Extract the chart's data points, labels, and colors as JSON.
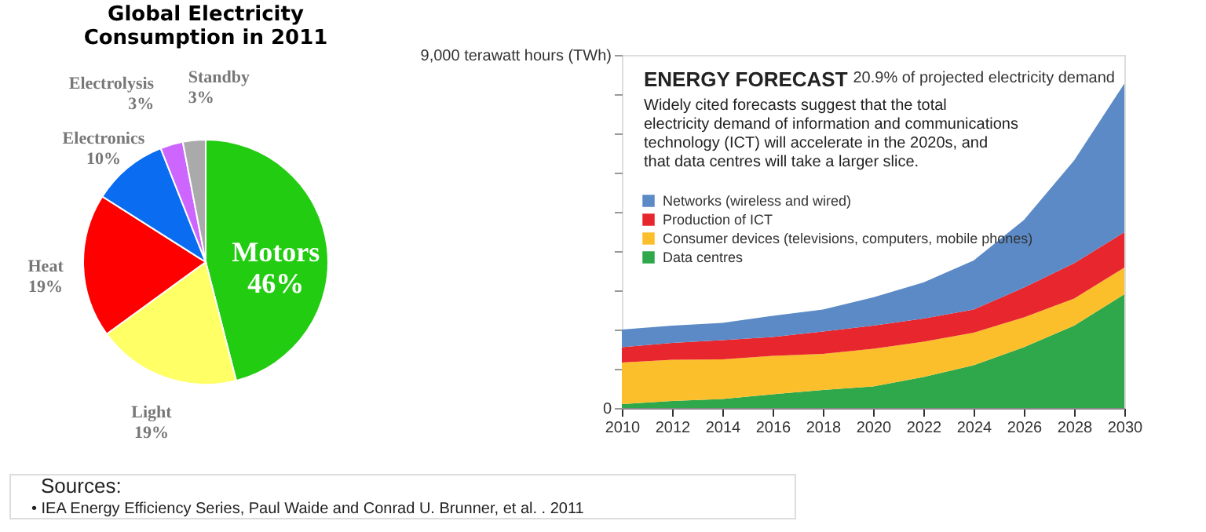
{
  "chart_data": [
    {
      "type": "pie",
      "title": "Global Electricity Consumption in 2011",
      "categories": [
        "Motors",
        "Light",
        "Heat",
        "Electronics",
        "Electrolysis",
        "Standby"
      ],
      "values": [
        46,
        19,
        19,
        10,
        3,
        3
      ],
      "value_labels": [
        "46%",
        "19%",
        "19%",
        "10%",
        "3%",
        "3%"
      ],
      "colors": [
        "#22cc11",
        "#ffff66",
        "#ff0000",
        "#0a6cf0",
        "#cc66ff",
        "#aaaaaa"
      ],
      "annotations": [
        "Sources:",
        "•   IEA Energy Efficiency Series, Paul Waide and Conrad U. Brunner, et al. . 2011"
      ]
    },
    {
      "type": "area",
      "stacked": true,
      "title": "ENERGY FORECAST",
      "subtitle": "Widely cited forecasts suggest that the total electricity demand of information and communications technology (ICT) will accelerate in the 2020s, and that data centres will take a larger slice.",
      "x": [
        2010,
        2012,
        2014,
        2016,
        2018,
        2020,
        2022,
        2024,
        2026,
        2028,
        2030
      ],
      "series": [
        {
          "name": "Data centres",
          "color": "#2ea84a",
          "values": [
            100,
            180,
            230,
            350,
            460,
            550,
            790,
            1090,
            1550,
            2100,
            2900
          ]
        },
        {
          "name": "Consumer devices (televisions, computers, mobile phones)",
          "color": "#fbbf2c",
          "values": [
            1060,
            1050,
            1010,
            980,
            920,
            960,
            900,
            830,
            760,
            690,
            680
          ]
        },
        {
          "name": "Production of ICT",
          "color": "#e8262e",
          "values": [
            390,
            430,
            490,
            480,
            570,
            590,
            590,
            590,
            760,
            900,
            900
          ]
        },
        {
          "name": "Networks (wireless and wired)",
          "color": "#5b8ac6",
          "values": [
            450,
            440,
            440,
            540,
            560,
            720,
            920,
            1250,
            1720,
            2620,
            3790
          ]
        }
      ],
      "xlim": [
        2010,
        2030
      ],
      "xticks": [
        2010,
        2012,
        2014,
        2016,
        2018,
        2020,
        2022,
        2024,
        2026,
        2028,
        2030
      ],
      "ylim": [
        0,
        9000
      ],
      "yticks": [
        0,
        {
          "value": 1000,
          "label": null
        },
        {
          "value": 2000,
          "label": null
        },
        {
          "value": 3000,
          "label": null
        },
        {
          "value": 4000,
          "label": null
        },
        {
          "value": 5000,
          "label": null
        },
        {
          "value": 6000,
          "label": null
        },
        {
          "value": 7000,
          "label": null
        },
        {
          "value": 8000,
          "label": null
        },
        {
          "value": 9000,
          "label": "9,000 terawatt hours (TWh)"
        }
      ],
      "legend": "left",
      "annotations": [
        {
          "text": "20.9% of projected electricity demand",
          "x": 2030,
          "y": 8270
        }
      ]
    }
  ]
}
